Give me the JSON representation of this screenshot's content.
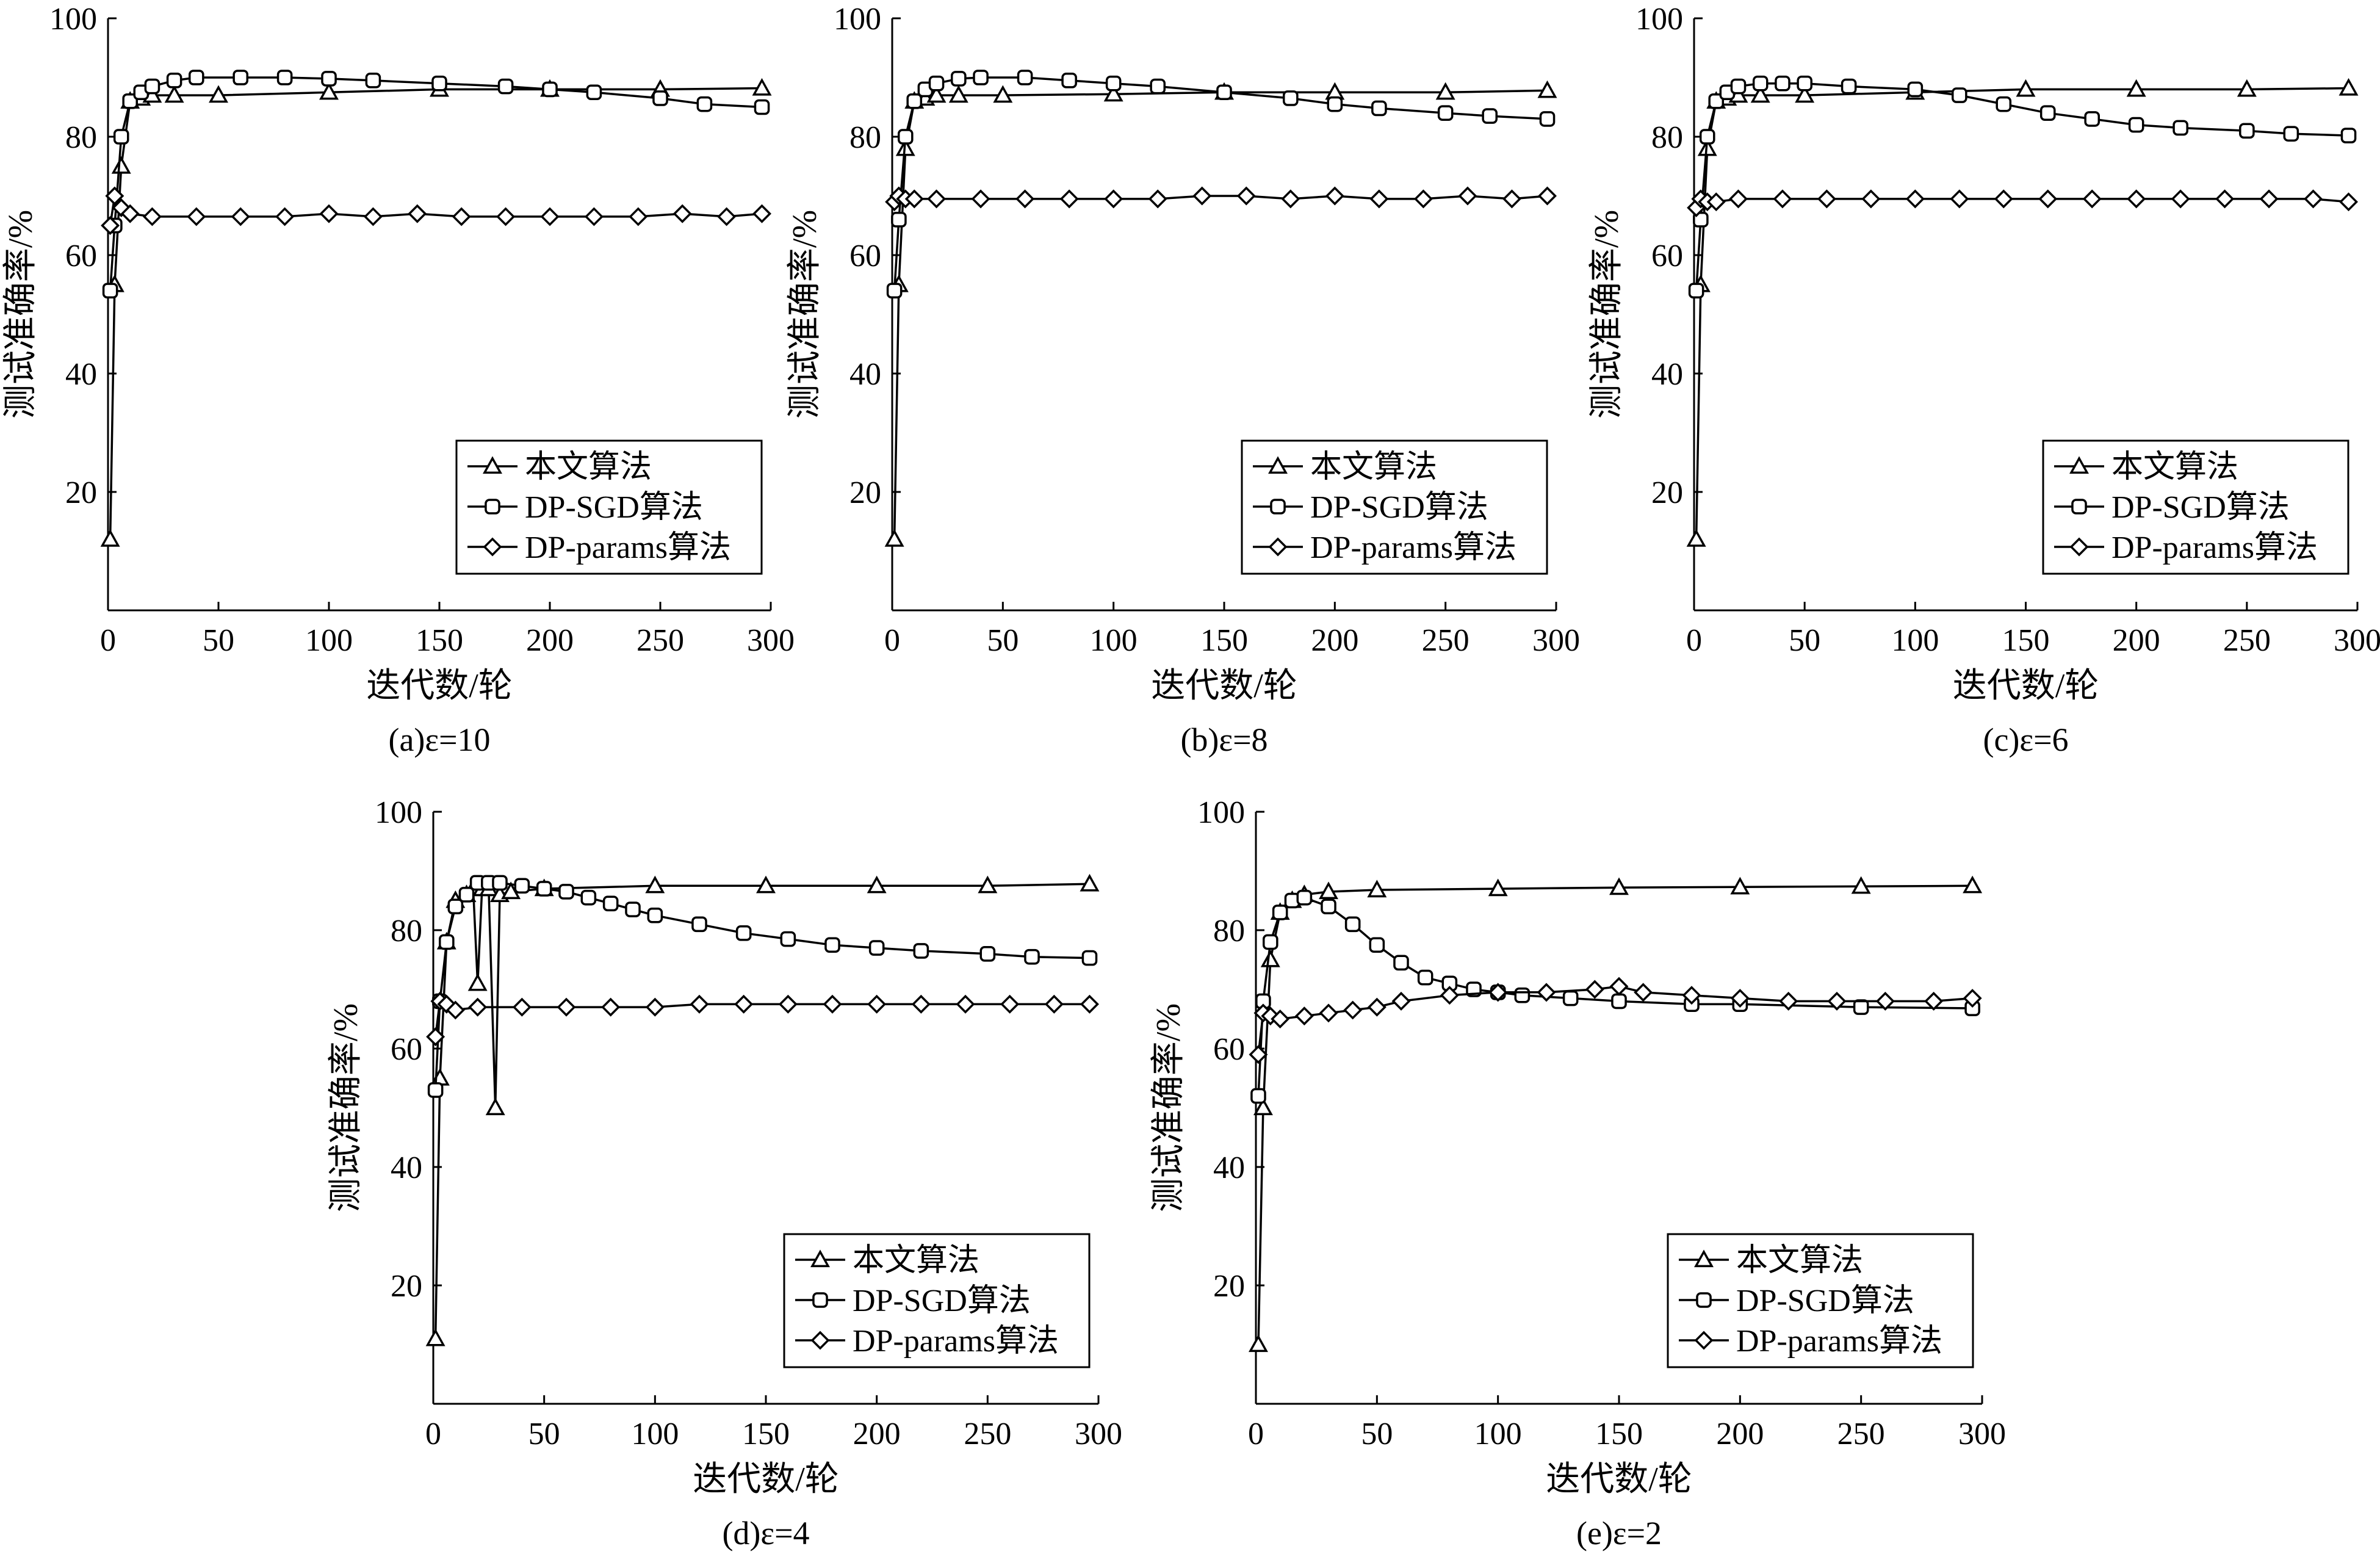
{
  "figure": {
    "ylabel": "测试准确率/%",
    "xlabel": "迭代数/轮",
    "legend": [
      "本文算法",
      "DP-SGD算法",
      "DP-params算法"
    ]
  },
  "chart_data": [
    {
      "type": "line",
      "caption": "(a)ε=10",
      "xlim": [
        0,
        300
      ],
      "ylim": [
        0,
        100
      ],
      "xticks": [
        0,
        50,
        100,
        150,
        200,
        250,
        300
      ],
      "yticks": [
        20,
        40,
        60,
        80,
        100
      ],
      "legend_position": "bottom-right",
      "series": [
        {
          "name": "本文算法",
          "marker": "triangle",
          "x": [
            1,
            3,
            6,
            10,
            15,
            20,
            30,
            50,
            100,
            150,
            200,
            250,
            296
          ],
          "y": [
            12,
            55,
            75,
            86,
            86.5,
            87,
            87,
            87,
            87.5,
            88,
            88,
            88,
            88.2
          ]
        },
        {
          "name": "DP-SGD算法",
          "marker": "square",
          "x": [
            1,
            3,
            6,
            10,
            15,
            20,
            30,
            40,
            60,
            80,
            100,
            120,
            150,
            180,
            200,
            220,
            250,
            270,
            296
          ],
          "y": [
            54,
            65,
            80,
            86,
            87.5,
            88.5,
            89.5,
            90,
            90,
            90,
            89.8,
            89.5,
            89,
            88.5,
            88,
            87.5,
            86.5,
            85.5,
            85
          ]
        },
        {
          "name": "DP-params算法",
          "marker": "diamond",
          "x": [
            1,
            3,
            6,
            10,
            20,
            40,
            60,
            80,
            100,
            120,
            140,
            160,
            180,
            200,
            220,
            240,
            260,
            280,
            296
          ],
          "y": [
            65,
            70,
            68,
            67,
            66.5,
            66.5,
            66.5,
            66.5,
            67,
            66.5,
            67,
            66.5,
            66.5,
            66.5,
            66.5,
            66.5,
            67,
            66.5,
            67
          ]
        }
      ]
    },
    {
      "type": "line",
      "caption": "(b)ε=8",
      "xlim": [
        0,
        300
      ],
      "ylim": [
        0,
        100
      ],
      "xticks": [
        0,
        50,
        100,
        150,
        200,
        250,
        300
      ],
      "yticks": [
        20,
        40,
        60,
        80,
        100
      ],
      "legend_position": "bottom-right",
      "series": [
        {
          "name": "本文算法",
          "marker": "triangle",
          "x": [
            1,
            3,
            6,
            10,
            15,
            20,
            30,
            50,
            100,
            150,
            200,
            250,
            296
          ],
          "y": [
            12,
            55,
            78,
            86,
            86.5,
            87,
            87,
            87,
            87.2,
            87.5,
            87.5,
            87.5,
            87.8
          ]
        },
        {
          "name": "DP-SGD算法",
          "marker": "square",
          "x": [
            1,
            3,
            6,
            10,
            15,
            20,
            30,
            40,
            60,
            80,
            100,
            120,
            150,
            180,
            200,
            220,
            250,
            270,
            296
          ],
          "y": [
            54,
            66,
            80,
            86,
            88,
            89,
            89.8,
            90,
            90,
            89.5,
            89,
            88.5,
            87.5,
            86.5,
            85.5,
            84.8,
            84,
            83.5,
            83
          ]
        },
        {
          "name": "DP-params算法",
          "marker": "diamond",
          "x": [
            1,
            3,
            6,
            10,
            20,
            40,
            60,
            80,
            100,
            120,
            140,
            160,
            180,
            200,
            220,
            240,
            260,
            280,
            296
          ],
          "y": [
            69,
            70,
            69.5,
            69.5,
            69.5,
            69.5,
            69.5,
            69.5,
            69.5,
            69.5,
            70,
            70,
            69.5,
            70,
            69.5,
            69.5,
            70,
            69.5,
            70
          ]
        }
      ]
    },
    {
      "type": "line",
      "caption": "(c)ε=6",
      "xlim": [
        0,
        300
      ],
      "ylim": [
        0,
        100
      ],
      "xticks": [
        0,
        50,
        100,
        150,
        200,
        250,
        300
      ],
      "yticks": [
        20,
        40,
        60,
        80,
        100
      ],
      "legend_position": "bottom-right",
      "series": [
        {
          "name": "本文算法",
          "marker": "triangle",
          "x": [
            1,
            3,
            6,
            10,
            15,
            20,
            30,
            50,
            100,
            150,
            200,
            250,
            296
          ],
          "y": [
            12,
            55,
            78,
            86,
            86.5,
            87,
            87,
            87,
            87.5,
            88,
            88,
            88,
            88.2
          ]
        },
        {
          "name": "DP-SGD算法",
          "marker": "square",
          "x": [
            1,
            3,
            6,
            10,
            15,
            20,
            30,
            40,
            50,
            70,
            100,
            120,
            140,
            160,
            180,
            200,
            220,
            250,
            270,
            296
          ],
          "y": [
            54,
            66,
            80,
            86,
            87.5,
            88.5,
            89,
            89,
            89,
            88.5,
            88,
            87,
            85.5,
            84,
            83,
            82,
            81.5,
            81,
            80.5,
            80.2
          ]
        },
        {
          "name": "DP-params算法",
          "marker": "diamond",
          "x": [
            1,
            3,
            6,
            10,
            20,
            40,
            60,
            80,
            100,
            120,
            140,
            160,
            180,
            200,
            220,
            240,
            260,
            280,
            296
          ],
          "y": [
            68,
            69.5,
            69,
            69,
            69.5,
            69.5,
            69.5,
            69.5,
            69.5,
            69.5,
            69.5,
            69.5,
            69.5,
            69.5,
            69.5,
            69.5,
            69.5,
            69.5,
            69
          ]
        }
      ]
    },
    {
      "type": "line",
      "caption": "(d)ε=4",
      "xlim": [
        0,
        300
      ],
      "ylim": [
        0,
        100
      ],
      "xticks": [
        0,
        50,
        100,
        150,
        200,
        250,
        300
      ],
      "yticks": [
        20,
        40,
        60,
        80,
        100
      ],
      "legend_position": "bottom-right",
      "series": [
        {
          "name": "本文算法",
          "marker": "triangle",
          "x": [
            1,
            3,
            6,
            10,
            15,
            18,
            20,
            22,
            25,
            28,
            30,
            35,
            50,
            100,
            150,
            200,
            250,
            296
          ],
          "y": [
            11,
            55,
            78,
            85,
            86,
            87,
            71,
            87,
            87,
            50,
            86,
            86.5,
            87,
            87.5,
            87.5,
            87.5,
            87.5,
            87.8
          ]
        },
        {
          "name": "DP-SGD算法",
          "marker": "square",
          "x": [
            1,
            3,
            6,
            10,
            15,
            20,
            25,
            30,
            40,
            50,
            60,
            70,
            80,
            90,
            100,
            120,
            140,
            160,
            180,
            200,
            220,
            250,
            270,
            296
          ],
          "y": [
            53,
            68,
            78,
            84,
            86,
            88,
            88,
            88,
            87.5,
            87,
            86.5,
            85.5,
            84.5,
            83.5,
            82.5,
            81,
            79.5,
            78.5,
            77.5,
            77,
            76.5,
            76,
            75.5,
            75.3
          ]
        },
        {
          "name": "DP-params算法",
          "marker": "diamond",
          "x": [
            1,
            3,
            6,
            10,
            20,
            40,
            60,
            80,
            100,
            120,
            140,
            160,
            180,
            200,
            220,
            240,
            260,
            280,
            296
          ],
          "y": [
            62,
            68,
            67.5,
            66.5,
            67,
            67,
            67,
            67,
            67,
            67.5,
            67.5,
            67.5,
            67.5,
            67.5,
            67.5,
            67.5,
            67.5,
            67.5,
            67.5
          ]
        }
      ]
    },
    {
      "type": "line",
      "caption": "(e)ε=2",
      "xlim": [
        0,
        300
      ],
      "ylim": [
        0,
        100
      ],
      "xticks": [
        0,
        50,
        100,
        150,
        200,
        250,
        300
      ],
      "yticks": [
        20,
        40,
        60,
        80,
        100
      ],
      "legend_position": "bottom-right",
      "series": [
        {
          "name": "本文算法",
          "marker": "triangle",
          "x": [
            1,
            3,
            6,
            10,
            15,
            20,
            30,
            50,
            100,
            150,
            200,
            250,
            296
          ],
          "y": [
            10,
            50,
            75,
            83,
            85,
            86,
            86.5,
            86.8,
            87,
            87.2,
            87.3,
            87.4,
            87.5
          ]
        },
        {
          "name": "DP-SGD算法",
          "marker": "square",
          "x": [
            1,
            3,
            6,
            10,
            15,
            20,
            30,
            40,
            50,
            60,
            70,
            80,
            90,
            100,
            110,
            130,
            150,
            180,
            200,
            250,
            296
          ],
          "y": [
            52,
            68,
            78,
            83,
            85,
            85.5,
            84,
            81,
            77.5,
            74.5,
            72,
            71,
            70,
            69.5,
            69,
            68.5,
            68,
            67.5,
            67.5,
            67,
            66.8
          ]
        },
        {
          "name": "DP-params算法",
          "marker": "diamond",
          "x": [
            1,
            3,
            6,
            10,
            20,
            30,
            40,
            50,
            60,
            80,
            100,
            120,
            140,
            150,
            160,
            180,
            200,
            220,
            240,
            260,
            280,
            296
          ],
          "y": [
            59,
            66,
            65.5,
            65,
            65.5,
            66,
            66.5,
            67,
            68,
            69,
            69.5,
            69.5,
            70,
            70.5,
            69.5,
            69,
            68.5,
            68,
            68,
            68,
            68,
            68.5
          ]
        }
      ]
    }
  ]
}
